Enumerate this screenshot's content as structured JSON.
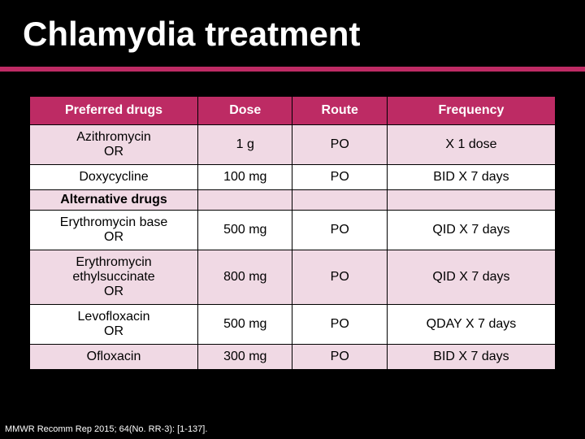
{
  "slide": {
    "title": "Chlamydia treatment",
    "citation": "MMWR Recomm Rep 2015; 64(No. RR-3): [1-137].",
    "accent_color": "#be2b64",
    "header_bg": "#bd2b64",
    "pink_row_bg": "#f0d9e4",
    "white_row_bg": "#ffffff",
    "background": "#000000"
  },
  "table": {
    "columns": [
      {
        "label": "Preferred drugs",
        "width_pct": 32
      },
      {
        "label": "Dose",
        "width_pct": 18
      },
      {
        "label": "Route",
        "width_pct": 18
      },
      {
        "label": "Frequency",
        "width_pct": 32
      }
    ],
    "rows": [
      {
        "drug_line1": "Azithromycin",
        "drug_line2": "OR",
        "dose": "1 g",
        "route": "PO",
        "freq": "X 1 dose",
        "shade": "pink"
      },
      {
        "drug_line1": "Doxycycline",
        "drug_line2": "",
        "dose": "100 mg",
        "route": "PO",
        "freq": "BID X 7 days",
        "shade": "white"
      }
    ],
    "subheader": "Alternative drugs",
    "alt_rows": [
      {
        "drug_line1": "Erythromycin base",
        "drug_line2": "OR",
        "dose": "500 mg",
        "route": "PO",
        "freq": "QID X 7 days",
        "shade": "white"
      },
      {
        "drug_line1": "Erythromycin",
        "drug_line2": "ethylsuccinate",
        "drug_line3": "OR",
        "dose": "800 mg",
        "route": "PO",
        "freq": "QID X 7 days",
        "shade": "pink"
      },
      {
        "drug_line1": "Levofloxacin",
        "drug_line2": "OR",
        "dose": "500 mg",
        "route": "PO",
        "freq": "QDAY X 7 days",
        "shade": "white"
      },
      {
        "drug_line1": "Ofloxacin",
        "drug_line2": "",
        "dose": "300 mg",
        "route": "PO",
        "freq": "BID X 7 days",
        "shade": "pink"
      }
    ]
  }
}
